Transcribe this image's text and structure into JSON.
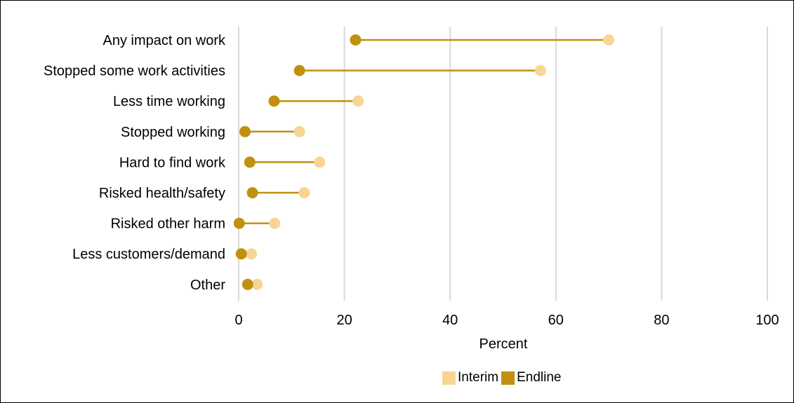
{
  "chart_data": {
    "type": "dumbbell",
    "categories": [
      "Any impact on work",
      "Stopped some work activities",
      "Less time working",
      "Stopped working",
      "Hard to find work",
      "Risked health/safety",
      "Risked other harm",
      "Less customers/demand",
      "Other"
    ],
    "series": [
      {
        "name": "Interim",
        "color": "#f8d595",
        "values": [
          70.0,
          57.1,
          22.6,
          11.5,
          15.3,
          12.4,
          6.8,
          2.4,
          3.5
        ]
      },
      {
        "name": "Endline",
        "color": "#c0900f",
        "values": [
          22.1,
          11.5,
          6.7,
          1.2,
          2.1,
          2.6,
          0.1,
          0.5,
          1.7
        ]
      }
    ],
    "connector_color": "#c0900f",
    "xlabel": "Percent",
    "ylabel": "",
    "xlim": [
      0,
      100
    ],
    "x_ticks": [
      "0",
      "20",
      "40",
      "60",
      "80",
      "100"
    ],
    "grid": "vertical",
    "legend_position": "bottom"
  }
}
